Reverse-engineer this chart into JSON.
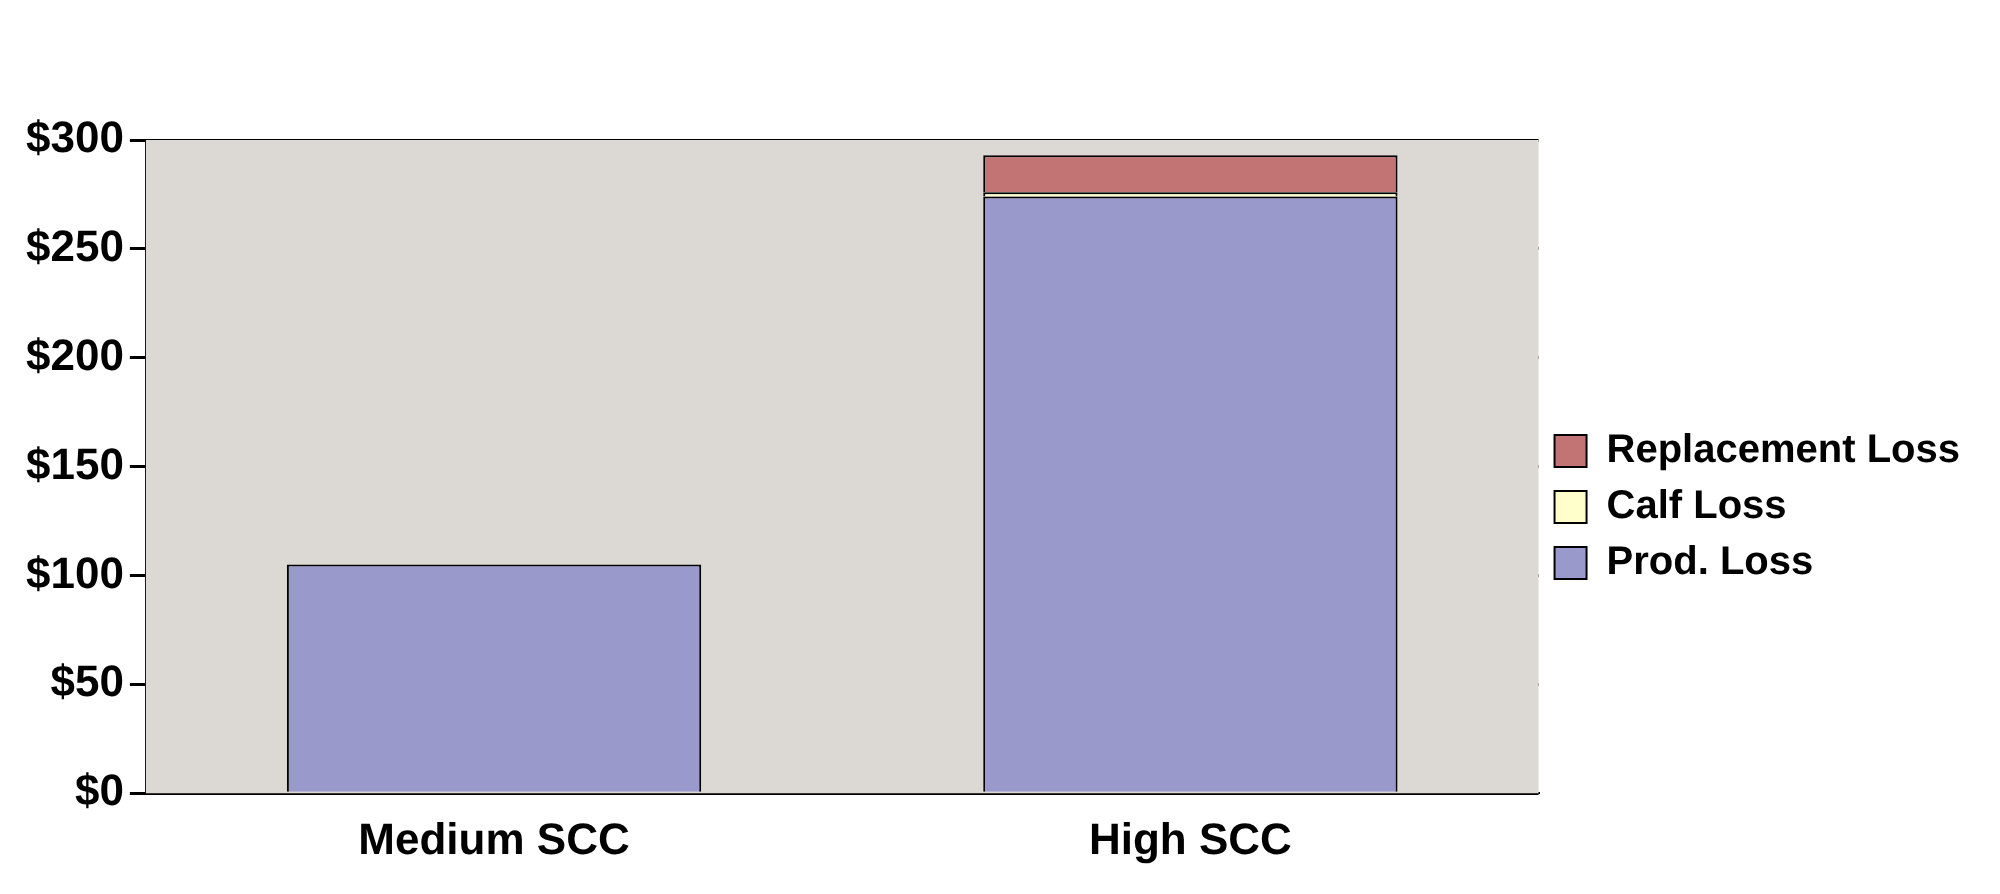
{
  "chart_data": {
    "type": "bar",
    "stacked": true,
    "categories": [
      "Medium SCC",
      "High SCC"
    ],
    "series": [
      {
        "name": "Prod. Loss",
        "color": "#9999cc",
        "values": [
          105,
          274
        ]
      },
      {
        "name": "Calf Loss",
        "color": "#ffffcc",
        "values": [
          null,
          2
        ]
      },
      {
        "name": "Replacement Loss",
        "color": "#c27474",
        "values": [
          null,
          17
        ]
      }
    ],
    "ylim": [
      0,
      300
    ],
    "yticks": [
      {
        "value": 0,
        "label": "$0"
      },
      {
        "value": 50,
        "label": "$50"
      },
      {
        "value": 100,
        "label": "$100"
      },
      {
        "value": 150,
        "label": "$150"
      },
      {
        "value": 200,
        "label": "$200"
      },
      {
        "value": 250,
        "label": "$250"
      },
      {
        "value": 300,
        "label": "$300"
      }
    ],
    "grid": "y",
    "legend": "right"
  }
}
